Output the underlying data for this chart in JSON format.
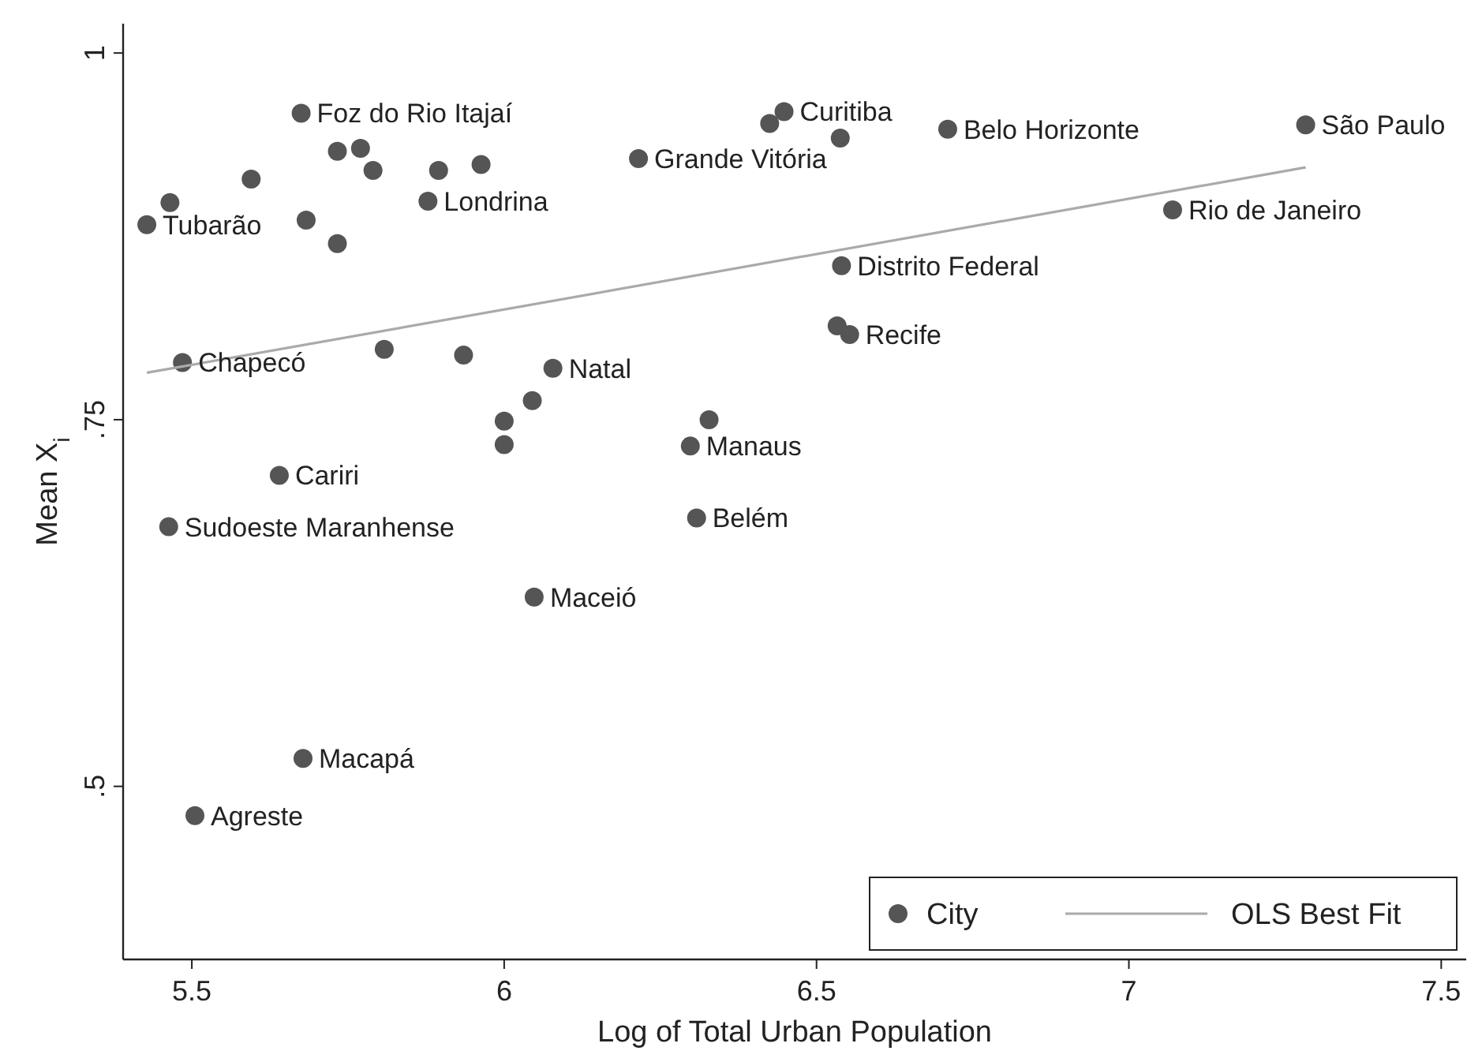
{
  "chart_data": {
    "type": "scatter",
    "xlabel": "Log of Total Urban Population",
    "ylabel": "Mean X$_{i}$",
    "xlim": [
      5.39,
      7.54
    ],
    "xticks": [
      5.5,
      6,
      6.5,
      7,
      7.5
    ],
    "ylim": [
      0.382,
      1.02
    ],
    "yticks": [
      {
        "value": 0.5,
        "label": ".5"
      },
      {
        "value": 0.75,
        "label": ".75"
      },
      {
        "value": 1,
        "label": "1"
      }
    ],
    "grid": false,
    "legend": "bottom right",
    "marker": "circle",
    "series": [
      {
        "name": "City",
        "color": "#555555",
        "x": [
          5.675,
          5.733,
          5.77,
          5.79,
          5.595,
          5.465,
          5.428,
          5.683,
          5.733,
          5.878,
          5.895,
          5.963,
          6.215,
          6.448,
          6.425,
          6.538,
          6.71,
          7.283,
          7.07,
          6.54,
          6.533,
          6.553,
          5.485,
          5.808,
          5.935,
          6.078,
          6.045,
          6.0,
          6.0,
          6.328,
          6.298,
          5.64,
          5.463,
          6.308,
          6.048,
          5.678,
          5.505
        ],
        "values": [
          0.959,
          0.933,
          0.935,
          0.92,
          0.914,
          0.898,
          0.883,
          0.886,
          0.87,
          0.899,
          0.92,
          0.924,
          0.928,
          0.96,
          0.952,
          0.942,
          0.948,
          0.951,
          0.893,
          0.855,
          0.814,
          0.808,
          0.789,
          0.798,
          0.794,
          0.785,
          0.763,
          0.749,
          0.733,
          0.75,
          0.732,
          0.712,
          0.677,
          0.683,
          0.629,
          0.519,
          0.48
        ]
      },
      {
        "name": "OLS Best Fit",
        "type": "line",
        "color": "#aaaaaa",
        "line_style": "solid",
        "marker": "none",
        "x": [
          5.428,
          7.283
        ],
        "values": [
          0.782,
          0.922
        ]
      }
    ],
    "annotations": [
      {
        "text": "Foz do Rio Itajaí",
        "x": 5.675,
        "y": 0.959
      },
      {
        "text": "Tubarão",
        "x": 5.428,
        "y": 0.883
      },
      {
        "text": "Londrina",
        "x": 5.878,
        "y": 0.899
      },
      {
        "text": "Grande Vitória",
        "x": 6.215,
        "y": 0.928
      },
      {
        "text": "Curitiba",
        "x": 6.448,
        "y": 0.96
      },
      {
        "text": "Belo Horizonte",
        "x": 6.71,
        "y": 0.948
      },
      {
        "text": "São Paulo",
        "x": 7.283,
        "y": 0.951
      },
      {
        "text": "Rio de Janeiro",
        "x": 7.07,
        "y": 0.893
      },
      {
        "text": "Distrito Federal",
        "x": 6.54,
        "y": 0.855
      },
      {
        "text": "Recife",
        "x": 6.553,
        "y": 0.808
      },
      {
        "text": "Chapecó",
        "x": 5.485,
        "y": 0.789
      },
      {
        "text": "Natal",
        "x": 6.078,
        "y": 0.785
      },
      {
        "text": "Manaus",
        "x": 6.298,
        "y": 0.732
      },
      {
        "text": "Cariri",
        "x": 5.64,
        "y": 0.712
      },
      {
        "text": "Sudoeste Maranhense",
        "x": 5.463,
        "y": 0.677
      },
      {
        "text": "Belém",
        "x": 6.308,
        "y": 0.683
      },
      {
        "text": "Maceió",
        "x": 6.048,
        "y": 0.629
      },
      {
        "text": "Macapá",
        "x": 5.678,
        "y": 0.519
      },
      {
        "text": "Agreste",
        "x": 5.505,
        "y": 0.48
      }
    ]
  }
}
